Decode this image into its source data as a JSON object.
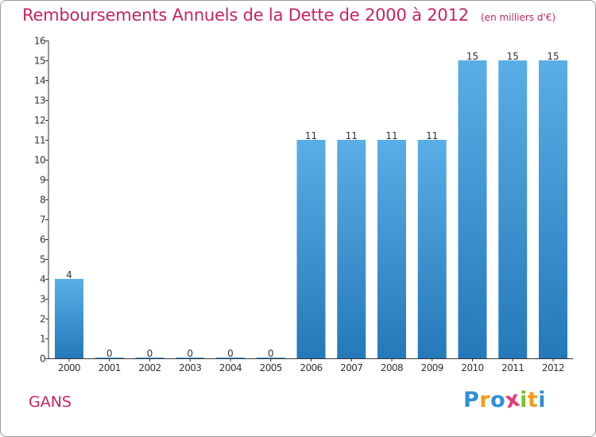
{
  "header": {
    "title": "Remboursements Annuels de la Dette de 2000 à 2012",
    "unit": "(en milliers d'€)"
  },
  "footer": {
    "commune": "GANS"
  },
  "logo": {
    "text": "Proxiti",
    "letters": [
      {
        "char": "P",
        "color": "#2f8fd6"
      },
      {
        "char": "r",
        "color": "#f29a1b"
      },
      {
        "char": "o",
        "color": "#2f8fd6"
      },
      {
        "char": "x",
        "color": "#e5397a"
      },
      {
        "char": "i",
        "color": "#7bbf2a"
      },
      {
        "char": "t",
        "color": "#f29a1b"
      },
      {
        "char": "i",
        "color": "#2f8fd6"
      }
    ]
  },
  "chart_data": {
    "type": "bar",
    "title": "Remboursements Annuels de la Dette de 2000 à 2012",
    "subtitle": "(en milliers d'€)",
    "xlabel": "",
    "ylabel": "",
    "categories": [
      "2000",
      "2001",
      "2002",
      "2003",
      "2004",
      "2005",
      "2006",
      "2007",
      "2008",
      "2009",
      "2010",
      "2011",
      "2012"
    ],
    "values": [
      4,
      0,
      0,
      0,
      0,
      0,
      11,
      11,
      11,
      11,
      15,
      15,
      15
    ],
    "data_labels": [
      "4",
      "0",
      "0",
      "0",
      "0",
      "0",
      "11",
      "11",
      "11",
      "11",
      "15",
      "15",
      "15"
    ],
    "ylim": [
      0,
      16
    ],
    "yticks": [
      0,
      1,
      2,
      3,
      4,
      5,
      6,
      7,
      8,
      9,
      10,
      11,
      12,
      13,
      14,
      15,
      16
    ],
    "ytick_labels": [
      "0",
      "1",
      "2",
      "3",
      "4",
      "5",
      "6",
      "7",
      "8",
      "9",
      "10",
      "11",
      "12",
      "13",
      "14",
      "15",
      "16"
    ],
    "grid": false,
    "legend": "none",
    "colors": {
      "bar_top": "#5aaee6",
      "bar_bottom": "#2479b9",
      "axis": "#333333",
      "text": "#333333",
      "title": "#c8245e"
    }
  }
}
